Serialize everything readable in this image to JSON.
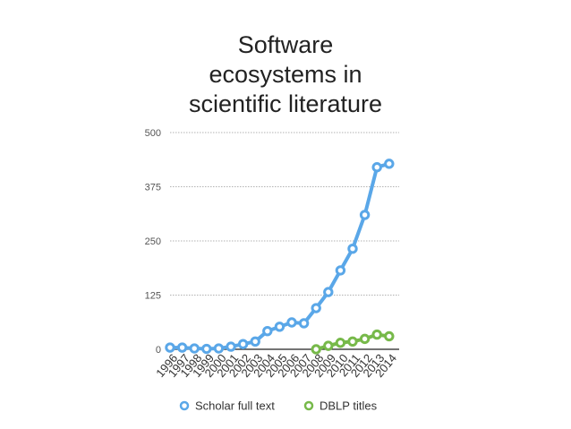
{
  "chart_data": {
    "type": "line",
    "title_lines": [
      "Software",
      "ecosystems in",
      "scientific literature"
    ],
    "x": [
      "1996",
      "1997",
      "1998",
      "1999",
      "2000",
      "2001",
      "2002",
      "2003",
      "2004",
      "2005",
      "2006",
      "2007",
      "2008",
      "2009",
      "2010",
      "2011",
      "2012",
      "2013",
      "2014"
    ],
    "ylim": [
      0,
      500
    ],
    "yticks": [
      "0",
      "125",
      "250",
      "375",
      "500"
    ],
    "grid": true,
    "legend_position": "bottom",
    "series": [
      {
        "name": "Scholar full text",
        "color": "#5aa7e8",
        "values": [
          4,
          4,
          2,
          1,
          2,
          6,
          12,
          18,
          42,
          52,
          62,
          60,
          95,
          132,
          182,
          232,
          310,
          420,
          428
        ]
      },
      {
        "name": "DBLP titles",
        "color": "#77b94a",
        "values": [
          null,
          null,
          null,
          null,
          null,
          null,
          null,
          null,
          null,
          null,
          null,
          null,
          0,
          8,
          15,
          18,
          24,
          34,
          30
        ]
      }
    ]
  }
}
